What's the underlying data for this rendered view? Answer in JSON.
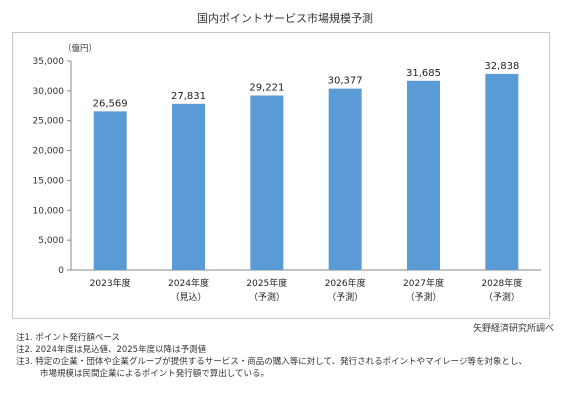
{
  "chart_data": {
    "type": "bar",
    "title": "国内ポイントサービス市場規模予測",
    "unit_label": "（億円）",
    "categories": [
      "2023年度",
      "2024年度",
      "2025年度",
      "2026年度",
      "2027年度",
      "2028年度"
    ],
    "category_sublabels": [
      "",
      "（見込）",
      "（予測）",
      "（予測）",
      "（予測）",
      "（予測）"
    ],
    "values": [
      26569,
      27831,
      29221,
      30377,
      31685,
      32838
    ],
    "data_labels": [
      "26,569",
      "27,831",
      "29,221",
      "30,377",
      "31,685",
      "32,838"
    ],
    "ylim": [
      0,
      35000
    ],
    "yticks": [
      0,
      5000,
      10000,
      15000,
      20000,
      25000,
      30000,
      35000
    ],
    "ytick_labels": [
      "0",
      "5,000",
      "10,000",
      "15,000",
      "20,000",
      "25,000",
      "30,000",
      "35,000"
    ],
    "grid": false,
    "bar_color": "#5b9bd5"
  },
  "source": "矢野経済研究所調べ",
  "notes": {
    "note1": "注1.  ポイント発行額ベース",
    "note2": "注2.  2024年度は見込値、2025年度以降は予測値",
    "note3_line1": "注3.  特定の企業・団体や企業グループが提供するサービス・商品の購入等に対して、発行されるポイントやマイレージ等を対象とし、",
    "note3_line2": "市場規模は民間企業によるポイント発行額で算出している。"
  }
}
